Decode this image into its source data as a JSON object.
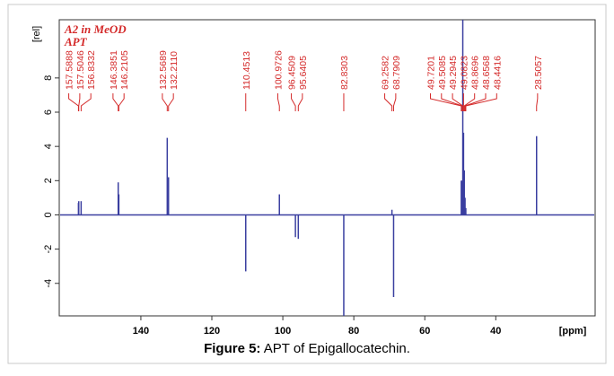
{
  "chart_data": {
    "type": "stem",
    "title": "A2 in MeOD",
    "subtitle": "APT",
    "y_label": "[rel]",
    "x_label": "[ppm]",
    "x": [
      157.5888,
      157.5046,
      156.8332,
      146.3851,
      146.2105,
      132.5689,
      132.211,
      110.4513,
      100.9726,
      96.4509,
      95.6405,
      82.8303,
      69.2582,
      68.7909,
      49.7201,
      49.5085,
      49.2945,
      49.0823,
      48.8696,
      48.6568,
      48.4416,
      28.5057
    ],
    "peak_labels": [
      "157.5888",
      "157.5046",
      "156.8332",
      "146.3851",
      "146.2105",
      "132.5689",
      "132.2110",
      "110.4513",
      "100.9726",
      "96.4509",
      "95.6405",
      "82.8303",
      "69.2582",
      "68.7909",
      "49.7201",
      "49.5085",
      "49.2945",
      "49.0823",
      "48.8696",
      "48.6568",
      "48.4416",
      "28.5057"
    ],
    "values": [
      0.7,
      0.8,
      0.8,
      1.9,
      1.2,
      4.5,
      2.2,
      -3.3,
      1.2,
      -1.3,
      -1.4,
      -5.9,
      0.3,
      -4.8,
      2.0,
      2.0,
      11.4,
      4.8,
      2.6,
      1.0,
      0.4,
      4.6
    ],
    "color": "#3a3fa0",
    "label_color": "#d42a2a",
    "xlim": [
      163,
      12
    ],
    "ylim": [
      -5.9,
      11.4
    ],
    "xticks": [
      140,
      120,
      100,
      80,
      60,
      40
    ],
    "yticks": [
      -4,
      -2,
      0,
      2,
      4,
      6,
      8
    ]
  },
  "caption": {
    "label": "Figure 5:",
    "text": "APT of Epigallocatechin."
  }
}
